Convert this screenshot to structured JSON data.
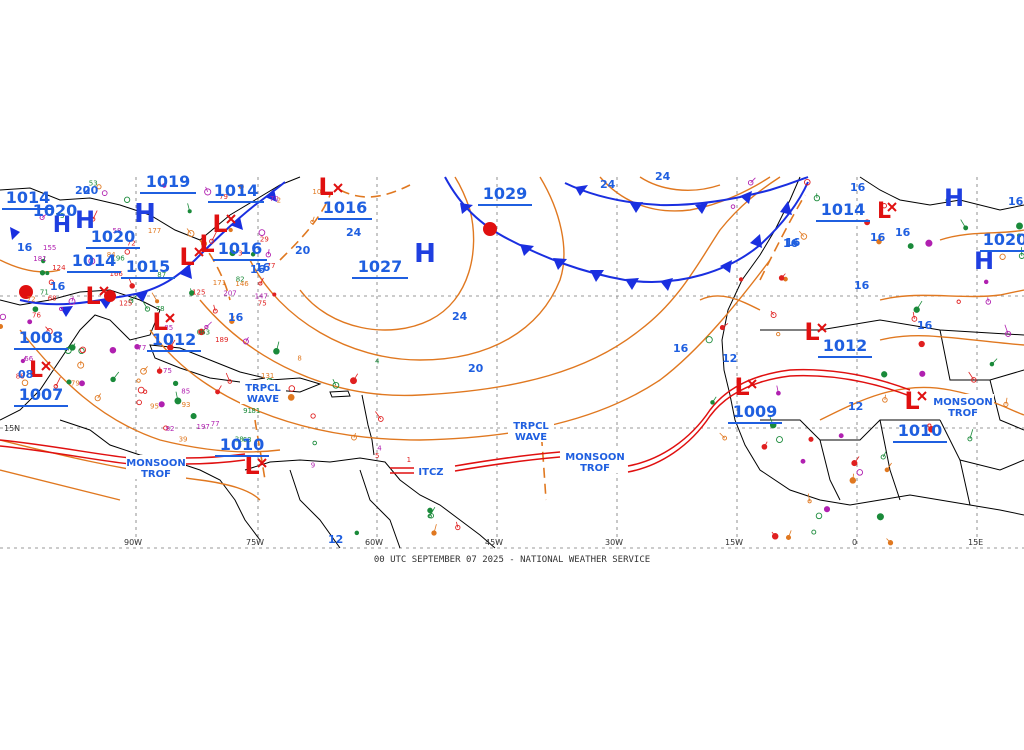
{
  "caption": "00 UTC SEPTEMBER 07 2025 - NATIONAL WEATHER SERVICE",
  "colors": {
    "pressure_text": "#1f5fe0",
    "high_symbol": "#1f3fe0",
    "low_symbol": "#e01010",
    "isobar": "#e07820",
    "cold_front": "#1a2fe0",
    "trough": "#e07820",
    "monsoon_trough": "#e01010",
    "land": "#000000",
    "station_green": "#1a8a3a",
    "station_purple": "#b020b0",
    "station_orange": "#e07820",
    "station_red": "#e02020"
  },
  "centers": [
    {
      "type": "H",
      "value": "1029"
    },
    {
      "type": "H",
      "value": "1027"
    },
    {
      "type": "H",
      "value": "1019"
    },
    {
      "type": "H",
      "value": "1020"
    },
    {
      "type": "H",
      "value": "1014"
    },
    {
      "type": "H",
      "value": "1014"
    },
    {
      "type": "H",
      "value": "1020"
    },
    {
      "type": "H",
      "value": "1020"
    },
    {
      "type": "L",
      "value": "1016"
    },
    {
      "type": "L",
      "value": "1016"
    },
    {
      "type": "L",
      "value": "1015"
    },
    {
      "type": "L",
      "value": "1014"
    },
    {
      "type": "L",
      "value": "1012"
    },
    {
      "type": "L",
      "value": "1008"
    },
    {
      "type": "L",
      "value": "1007"
    },
    {
      "type": "L",
      "value": "1010"
    },
    {
      "type": "L",
      "value": "1012"
    },
    {
      "type": "L",
      "value": "1009"
    },
    {
      "type": "L",
      "value": "1014"
    },
    {
      "type": "L",
      "value": "1010"
    }
  ],
  "isobar_labels": [
    "16",
    "20",
    "24",
    "16",
    "20",
    "24",
    "16",
    "20",
    "16",
    "12",
    "16",
    "16",
    "16",
    "12",
    "16",
    "12",
    "20",
    "16",
    "16",
    "16",
    "08",
    "16",
    "24",
    "24",
    "16",
    "16"
  ],
  "features": {
    "tropical_wave_1": [
      "TRPCL",
      "WAVE"
    ],
    "tropical_wave_2": [
      "TRPCL",
      "WAVE"
    ],
    "monsoon_trof_west": [
      "MONSOON",
      "TROF"
    ],
    "monsoon_trof_mid": [
      "MONSOON",
      "TROF"
    ],
    "monsoon_trof_east": [
      "MONSOON",
      "TROF"
    ],
    "itcz": "ITCZ"
  },
  "axis_labels": [
    "15N",
    "90W",
    "75W",
    "60W",
    "45W",
    "30W",
    "15W",
    "0",
    "15E"
  ],
  "station_numbers": [
    "72",
    "71",
    "196",
    "131",
    "53",
    "58",
    "73",
    "77",
    "87",
    "125",
    "75",
    "82",
    "85",
    "207",
    "166",
    "171",
    "177",
    "77",
    "84",
    "124",
    "181",
    "78",
    "155",
    "66",
    "79",
    "68",
    "72",
    "75",
    "95",
    "125",
    "88",
    "79",
    "85",
    "063",
    "76",
    "81",
    "39",
    "38",
    "93",
    "91",
    "77",
    "82",
    "189",
    "197",
    "63",
    "70",
    "147",
    "105",
    "146",
    "29",
    "2",
    "3",
    "4",
    "5",
    "8",
    "9",
    "4",
    "1"
  ]
}
